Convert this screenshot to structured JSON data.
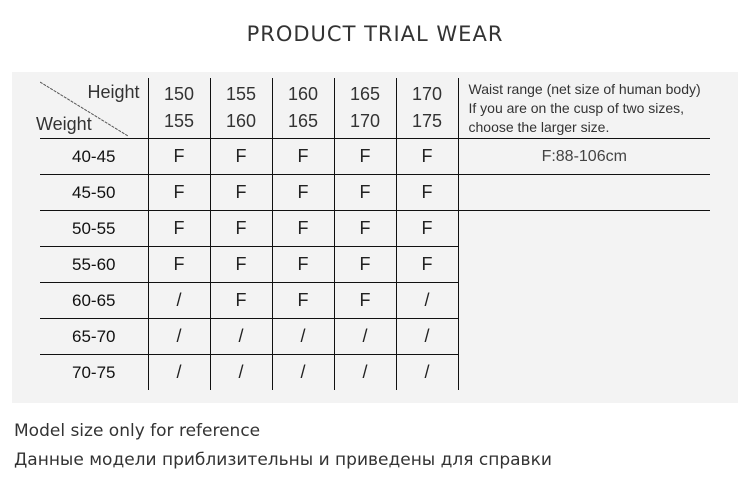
{
  "title": "PRODUCT TRIAL WEAR",
  "table": {
    "corner": {
      "height_label": "Height",
      "weight_label": "Weight"
    },
    "height_columns": [
      {
        "top": "150",
        "bottom": "155"
      },
      {
        "top": "155",
        "bottom": "160"
      },
      {
        "top": "160",
        "bottom": "165"
      },
      {
        "top": "165",
        "bottom": "170"
      },
      {
        "top": "170",
        "bottom": "175"
      }
    ],
    "info_header": [
      "Waist range (net size of human body)",
      "If you are on the cusp of two sizes,",
      "choose the larger size."
    ],
    "waist_range": "F:88-106cm",
    "rows": [
      {
        "weight": "40-45",
        "sizes": [
          "F",
          "F",
          "F",
          "F",
          "F"
        ]
      },
      {
        "weight": "45-50",
        "sizes": [
          "F",
          "F",
          "F",
          "F",
          "F"
        ]
      },
      {
        "weight": "50-55",
        "sizes": [
          "F",
          "F",
          "F",
          "F",
          "F"
        ]
      },
      {
        "weight": "55-60",
        "sizes": [
          "F",
          "F",
          "F",
          "F",
          "F"
        ]
      },
      {
        "weight": "60-65",
        "sizes": [
          "/",
          "F",
          "F",
          "F",
          "/"
        ]
      },
      {
        "weight": "65-70",
        "sizes": [
          "/",
          "/",
          "/",
          "/",
          "/"
        ]
      },
      {
        "weight": "70-75",
        "sizes": [
          "/",
          "/",
          "/",
          "/",
          "/"
        ]
      }
    ]
  },
  "footer": {
    "en": "Model size only for reference",
    "ru": "Данные модели приблизительны и приведены для справки"
  }
}
